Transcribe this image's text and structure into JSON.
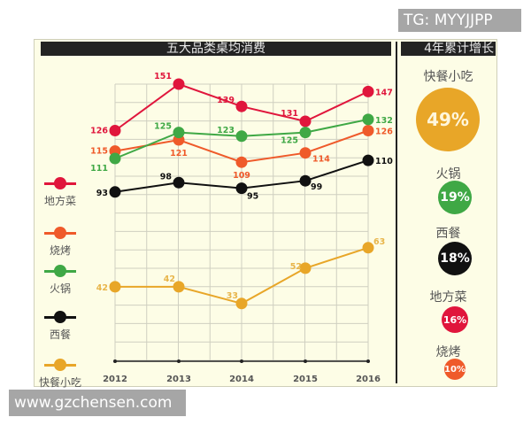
{
  "watermarks": {
    "top_right": "TG: MYYJJPP",
    "bottom_left": "www.gzchensen.com"
  },
  "left_panel": {
    "title": "五大品类桌均消费"
  },
  "right_panel": {
    "title": "4年累计增长",
    "items": [
      {
        "label": "快餐小吃",
        "value": "49%",
        "color": "#e8a628"
      },
      {
        "label": "火锅",
        "value": "19%",
        "color": "#3fa845"
      },
      {
        "label": "西餐",
        "value": "18%",
        "color": "#111111"
      },
      {
        "label": "地方菜",
        "value": "16%",
        "color": "#e0163c"
      },
      {
        "label": "烧烤",
        "value": "10%",
        "color": "#ef5a2a"
      }
    ]
  },
  "legend": [
    {
      "label": "地方菜",
      "color": "#e0163c"
    },
    {
      "label": "烧烤",
      "color": "#ef5a2a"
    },
    {
      "label": "火锅",
      "color": "#3fa845"
    },
    {
      "label": "西餐",
      "color": "#111111"
    },
    {
      "label": "快餐小吃",
      "color": "#e8a628"
    }
  ],
  "chart_data": [
    {
      "type": "line",
      "title": "五大品类桌均消费",
      "categories": [
        "2012",
        "2013",
        "2014",
        "2015",
        "2016"
      ],
      "series": [
        {
          "name": "地方菜",
          "color": "#e0163c",
          "values": [
            126,
            151,
            139,
            131,
            147
          ]
        },
        {
          "name": "烧烤",
          "color": "#ef5a2a",
          "values": [
            115,
            121,
            109,
            114,
            126
          ]
        },
        {
          "name": "火锅",
          "color": "#3fa845",
          "values": [
            111,
            125,
            123,
            125,
            132
          ]
        },
        {
          "name": "西餐",
          "color": "#111111",
          "values": [
            93,
            98,
            95,
            99,
            110
          ]
        },
        {
          "name": "快餐小吃",
          "color": "#e8a628",
          "values": [
            42,
            42,
            33,
            52,
            63
          ]
        }
      ],
      "xlabel": "",
      "ylabel": "",
      "grid": true,
      "legend_position": "left"
    },
    {
      "type": "table",
      "title": "4年累计增长",
      "categories": [
        "快餐小吃",
        "火锅",
        "西餐",
        "地方菜",
        "烧烤"
      ],
      "values": [
        49,
        19,
        18,
        16,
        10
      ],
      "unit": "%"
    }
  ]
}
